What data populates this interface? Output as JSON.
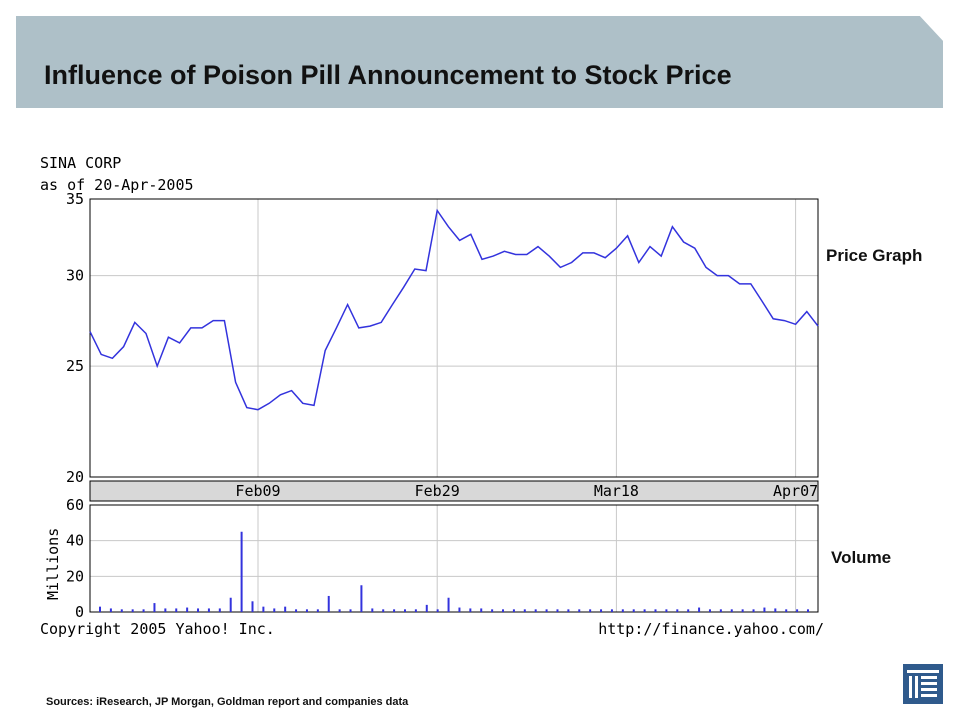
{
  "slide": {
    "title": "Influence of Poison Pill Announcement to Stock Price",
    "price_label": "Price Graph",
    "volume_label": "Volume",
    "sources": "Sources: iResearch, JP Morgan, Goldman report and companies data",
    "logo_icon": "company-logo-icon"
  },
  "chart_data": [
    {
      "type": "line",
      "title": "SINA CORP",
      "subtitle": "as of 20-Apr-2005",
      "ylim": [
        20,
        35
      ],
      "yscale": "log",
      "yticks": [
        20,
        25,
        30,
        35
      ],
      "xtick_labels": [
        "Feb09",
        "Feb29",
        "Mar18",
        "Apr07"
      ],
      "xtick_index": [
        15,
        31,
        47,
        63
      ],
      "grid": true,
      "line_color": "#3333dd",
      "series": [
        {
          "values": [
            26.8,
            25.6,
            25.4,
            26.0,
            27.3,
            26.7,
            25.0,
            26.5,
            26.2,
            27.0,
            27.0,
            27.4,
            27.4,
            24.2,
            23.0,
            22.9,
            23.2,
            23.6,
            23.8,
            23.2,
            23.1,
            25.8,
            27.0,
            28.3,
            27.0,
            27.1,
            27.3,
            28.3,
            29.3,
            30.4,
            30.3,
            34.2,
            33.1,
            32.2,
            32.6,
            31.0,
            31.2,
            31.5,
            31.3,
            31.3,
            31.8,
            31.2,
            30.5,
            30.8,
            31.4,
            31.4,
            31.1,
            31.7,
            32.5,
            30.8,
            31.8,
            31.2,
            33.1,
            32.1,
            31.7,
            30.5,
            30.0,
            30.0,
            29.5,
            29.5,
            28.5,
            27.5,
            27.4,
            27.2,
            27.9,
            27.1
          ]
        }
      ],
      "footer_left": "Copyright 2005 Yahoo! Inc.",
      "footer_right": "http://finance.yahoo.com/"
    },
    {
      "type": "bar",
      "ylabel": "Millions",
      "ylim": [
        0,
        60
      ],
      "yticks": [
        0,
        20,
        40,
        60
      ],
      "grid": true,
      "bar_color": "#3333dd",
      "series": [
        {
          "values": [
            3,
            2,
            1.5,
            1.5,
            1.5,
            5,
            2,
            2,
            2.5,
            2,
            2,
            2,
            8,
            45,
            6,
            3,
            2,
            3,
            1.5,
            1.5,
            1.5,
            9,
            1.5,
            1.5,
            15,
            2,
            1.5,
            1.5,
            1.5,
            1.5,
            4,
            1.5,
            8,
            2.5,
            2,
            2,
            1.5,
            1.5,
            1.5,
            1.5,
            1.5,
            1.5,
            1.5,
            1.5,
            1.5,
            1.5,
            1.5,
            1.5,
            1.5,
            1.5,
            1.5,
            1.5,
            1.5,
            1.5,
            1.5,
            2.5,
            1.5,
            1.5,
            1.5,
            1.5,
            1.5,
            2.5,
            2,
            1.5,
            1.5,
            1.5
          ]
        }
      ]
    }
  ]
}
